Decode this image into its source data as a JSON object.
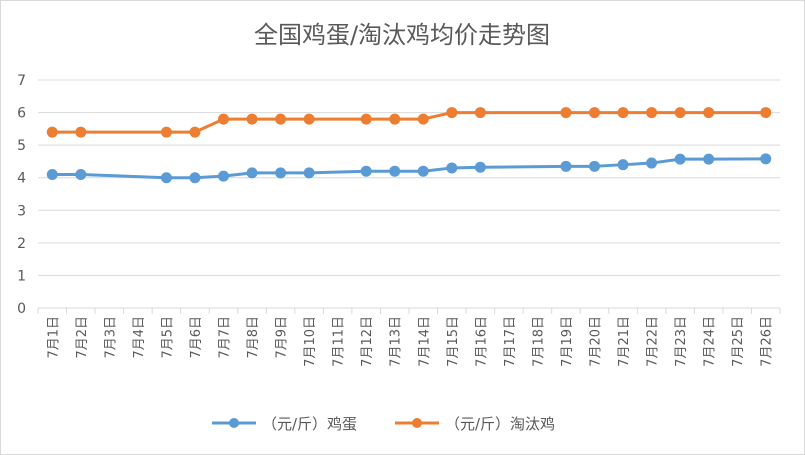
{
  "chart_data": {
    "type": "line",
    "title": "全国鸡蛋/淘汰鸡均价走势图",
    "xlabel": "",
    "ylabel": "",
    "ylim": [
      0,
      7
    ],
    "yticks": [
      "0",
      "1",
      "2",
      "3",
      "4",
      "5",
      "6",
      "7"
    ],
    "grid": true,
    "legend_position": "bottom",
    "categories": [
      "7月1日",
      "7月2日",
      "7月3日",
      "7月4日",
      "7月5日",
      "7月6日",
      "7月7日",
      "7月8日",
      "7月9日",
      "7月10日",
      "7月11日",
      "7月12日",
      "7月13日",
      "7月14日",
      "7月15日",
      "7月16日",
      "7月17日",
      "7月18日",
      "7月19日",
      "7月20日",
      "7月21日",
      "7月22日",
      "7月23日",
      "7月24日",
      "7月25日",
      "7月26日"
    ],
    "series": [
      {
        "name": "（元/斤）鸡蛋",
        "color": "#5b9bd5",
        "values": [
          4.1,
          4.1,
          null,
          null,
          4.0,
          4.0,
          4.05,
          4.15,
          4.15,
          4.15,
          null,
          4.2,
          4.2,
          4.2,
          4.3,
          4.32,
          null,
          null,
          4.35,
          4.35,
          4.4,
          4.45,
          4.57,
          4.57,
          null,
          4.58
        ]
      },
      {
        "name": "（元/斤）淘汰鸡",
        "color": "#ed7d31",
        "values": [
          5.4,
          5.4,
          null,
          null,
          5.4,
          5.4,
          5.8,
          5.8,
          5.8,
          5.8,
          null,
          5.8,
          5.8,
          5.8,
          6.0,
          6.0,
          null,
          null,
          6.0,
          6.0,
          6.0,
          6.0,
          6.0,
          6.0,
          null,
          6.0
        ]
      }
    ]
  }
}
